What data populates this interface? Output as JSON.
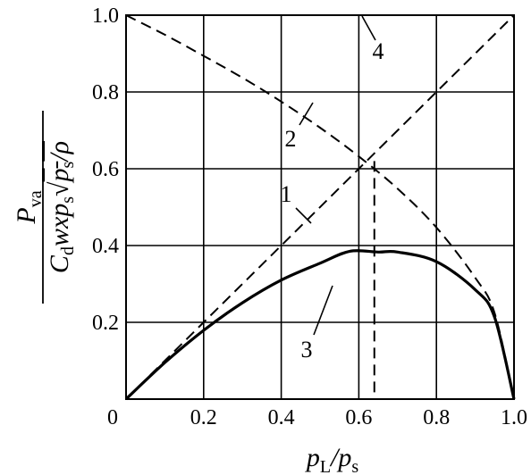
{
  "chart_data": {
    "type": "line",
    "title": "",
    "xlabel": {
      "parts": [
        {
          "text": "p",
          "sub": "L"
        },
        {
          "text": "/"
        },
        {
          "text": "p",
          "sub": "s"
        }
      ]
    },
    "ylabel": {
      "numerator": {
        "text": "P",
        "sub": "va"
      },
      "denominator": {
        "parts": [
          {
            "text": "C",
            "sub": "d"
          },
          {
            "text": "wxp",
            "sub": "s"
          },
          {
            "text": "√"
          },
          {
            "text": "p",
            "sub": "s",
            "overline": true
          },
          {
            "text": "/ρ",
            "overline": true
          }
        ]
      }
    },
    "xlim": [
      0,
      1.0
    ],
    "ylim": [
      0,
      1.0
    ],
    "grid": true,
    "x_ticks": [
      "0",
      "0.2",
      "0.4",
      "0.6",
      "0.8",
      "1.0"
    ],
    "y_ticks": [
      "0.2",
      "0.4",
      "0.6",
      "0.8",
      "1.0"
    ],
    "series": [
      {
        "name": "1",
        "style": "dashed",
        "x": [
          0,
          1.0
        ],
        "y": [
          0,
          1.0
        ]
      },
      {
        "name": "2",
        "style": "dashed",
        "x": [
          0,
          0.1,
          0.2,
          0.3,
          0.4,
          0.5,
          0.6,
          0.7,
          0.8,
          0.9,
          0.95,
          1.0
        ],
        "y": [
          1.0,
          0.949,
          0.894,
          0.837,
          0.775,
          0.707,
          0.632,
          0.548,
          0.447,
          0.316,
          0.224,
          0
        ]
      },
      {
        "name": "3",
        "style": "solid",
        "x": [
          0,
          0.1,
          0.2,
          0.3,
          0.4,
          0.5,
          0.577,
          0.65,
          0.7,
          0.8,
          0.9,
          0.95,
          1.0
        ],
        "y": [
          0,
          0.095,
          0.179,
          0.251,
          0.31,
          0.354,
          0.385,
          0.383,
          0.383,
          0.358,
          0.285,
          0.213,
          0
        ]
      },
      {
        "name": "4",
        "style": "dashed",
        "x": [
          0,
          1.0
        ],
        "y": [
          1.0,
          1.0
        ]
      }
    ],
    "annotations": [
      {
        "type": "vertical-dashed",
        "x": 0.64,
        "y_from": 0,
        "y_to": 0.62
      }
    ]
  }
}
